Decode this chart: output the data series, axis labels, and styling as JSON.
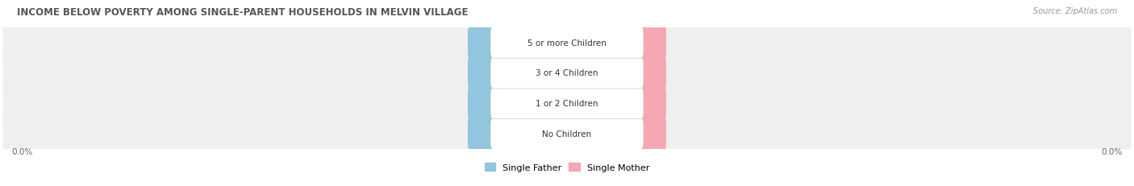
{
  "title": "INCOME BELOW POVERTY AMONG SINGLE-PARENT HOUSEHOLDS IN MELVIN VILLAGE",
  "source": "Source: ZipAtlas.com",
  "categories": [
    "No Children",
    "1 or 2 Children",
    "3 or 4 Children",
    "5 or more Children"
  ],
  "father_values": [
    0.0,
    0.0,
    0.0,
    0.0
  ],
  "mother_values": [
    0.0,
    0.0,
    0.0,
    0.0
  ],
  "father_color": "#92C5DE",
  "mother_color": "#F4A7B3",
  "title_color": "#555555",
  "source_color": "#999999",
  "value_color": "#FFFFFF",
  "label_color": "#333333",
  "row_bg_color": "#EFEFEF",
  "figsize": [
    14.06,
    2.32
  ],
  "dpi": 100
}
